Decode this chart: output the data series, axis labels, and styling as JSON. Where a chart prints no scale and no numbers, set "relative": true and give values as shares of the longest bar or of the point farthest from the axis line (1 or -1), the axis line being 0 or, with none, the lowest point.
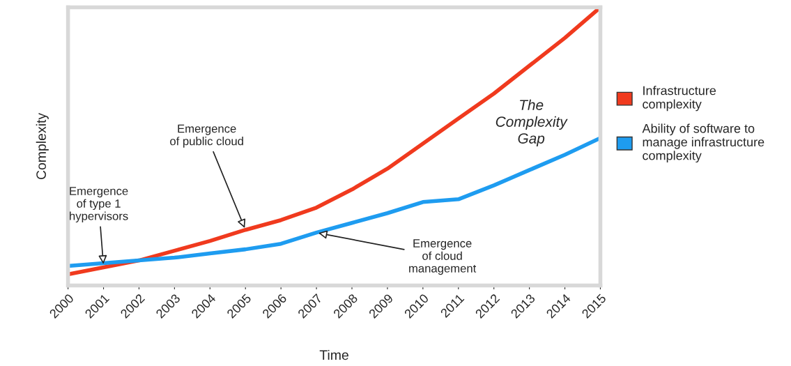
{
  "chart_data": {
    "type": "line",
    "xlabel": "Time",
    "ylabel": "Complexity",
    "relative": true,
    "x": [
      2000,
      2001,
      2002,
      2003,
      2004,
      2005,
      2006,
      2007,
      2008,
      2009,
      2010,
      2011,
      2012,
      2013,
      2014,
      2015
    ],
    "xlim": [
      2000,
      2015
    ],
    "xticks": [
      2000,
      2001,
      2002,
      2003,
      2004,
      2005,
      2006,
      2007,
      2008,
      2009,
      2010,
      2011,
      2012,
      2013,
      2014,
      2015
    ],
    "series": [
      {
        "name": "Infrastructure\ncomplexity",
        "color": "#f03a1e",
        "values": [
          0.04,
          0.065,
          0.09,
          0.125,
          0.16,
          0.2,
          0.235,
          0.28,
          0.345,
          0.42,
          0.51,
          0.6,
          0.69,
          0.79,
          0.89,
          1.0
        ]
      },
      {
        "name": "Ability of software to\nmanage infrastructure\ncomplexity",
        "color": "#1e9cf0",
        "values": [
          0.07,
          0.08,
          0.09,
          0.1,
          0.115,
          0.13,
          0.15,
          0.19,
          0.225,
          0.26,
          0.3,
          0.31,
          0.36,
          0.415,
          0.47,
          0.53
        ]
      }
    ],
    "annotations": [
      {
        "text": "Emergence\nof type 1\nhypervisors",
        "x": 2001,
        "y": 0.07
      },
      {
        "text": "Emergence\nof public cloud",
        "x": 2005,
        "y": 0.2
      },
      {
        "text": "Emergence\nof cloud\nmanagement",
        "x": 2007,
        "y": 0.19
      },
      "The\nComplexity\nGap"
    ],
    "tick_labels": "x",
    "grid": false,
    "legend": "right",
    "marker": "none",
    "line_style": "solid"
  }
}
